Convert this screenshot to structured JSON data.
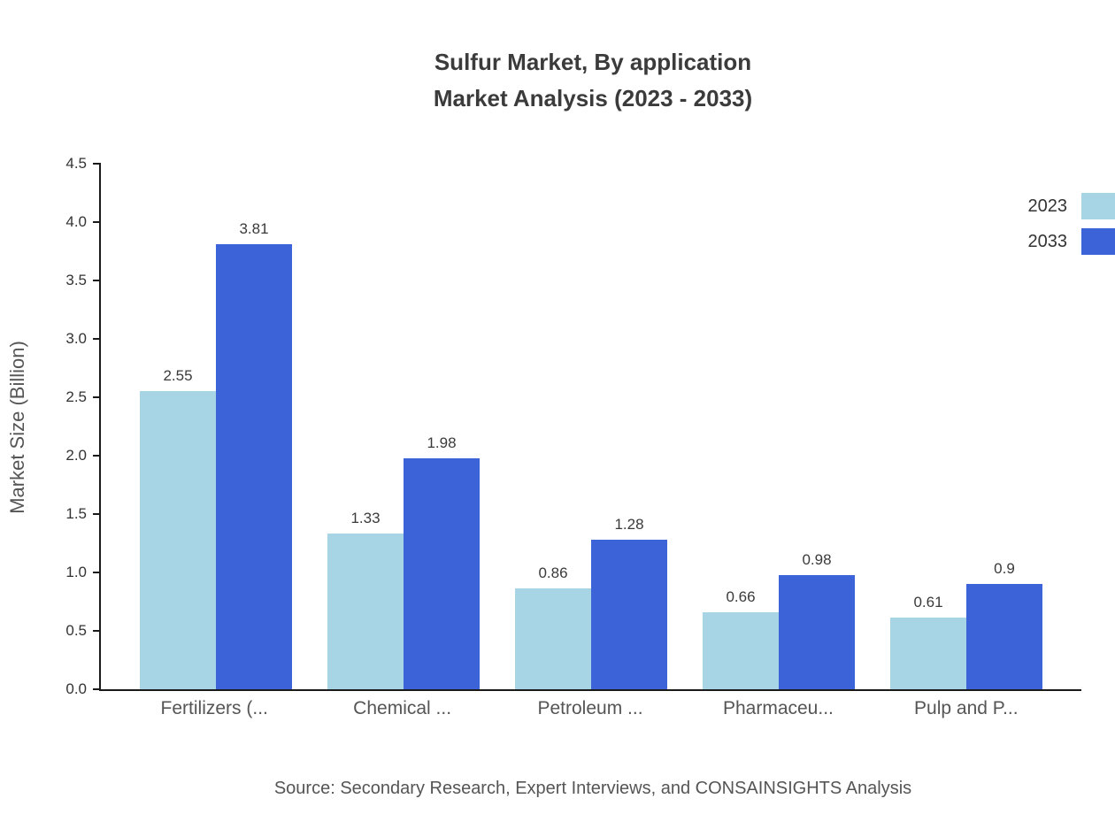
{
  "title": {
    "line1": "Sulfur Market, By application",
    "line2": "Market Analysis (2023 - 2033)"
  },
  "source": "Source: Secondary Research, Expert Interviews, and CONSAINSIGHTS Analysis",
  "chart_data": {
    "type": "bar",
    "title": "Sulfur Market, By application Market Analysis (2023 - 2033)",
    "xlabel": "",
    "ylabel": "Market Size (Billion)",
    "ylim": [
      0,
      4.5
    ],
    "ytick_step": 0.5,
    "grid": false,
    "legend_position": "top-right",
    "categories": [
      "Fertilizers (...",
      "Chemical ...",
      "Petroleum ...",
      "Pharmaceu...",
      "Pulp and P..."
    ],
    "series": [
      {
        "name": "2023",
        "color": "#a8d5e6",
        "values": [
          2.55,
          1.33,
          0.86,
          0.66,
          0.61
        ]
      },
      {
        "name": "2033",
        "color": "#3d63d9",
        "values": [
          3.81,
          1.98,
          1.28,
          0.98,
          0.9
        ]
      }
    ]
  }
}
